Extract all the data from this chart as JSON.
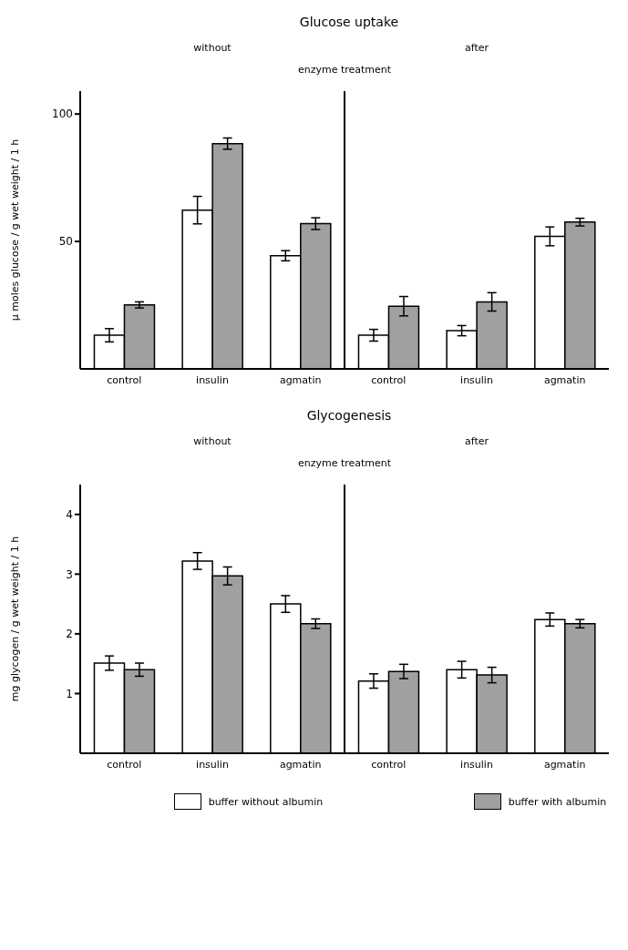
{
  "chart_data": [
    {
      "type": "bar",
      "title": "Glucose uptake",
      "ylabel": "µ moles glucose / g  wet  weight / 1 h",
      "annotations": [
        "without",
        "after",
        "enzyme treatment"
      ],
      "categories": [
        "control",
        "insulin",
        "agmatin",
        "control",
        "insulin",
        "agmatin"
      ],
      "series": [
        {
          "color": "#ffffff",
          "values": [
            13.2,
            62.3,
            44.4,
            13.2,
            15.0,
            52.0
          ],
          "errors": [
            2.6,
            5.4,
            2.0,
            2.3,
            2.0,
            3.7
          ]
        },
        {
          "color": "#a0a0a0",
          "values": [
            25.1,
            88.4,
            57.0,
            24.6,
            26.3,
            57.6
          ],
          "errors": [
            1.2,
            2.2,
            2.3,
            3.8,
            3.6,
            1.5
          ]
        }
      ],
      "ylim": [
        0,
        109
      ],
      "yticks": [
        50,
        100
      ],
      "grid": false,
      "legend": false
    },
    {
      "type": "bar",
      "title": "Glycogenesis",
      "ylabel": "mg glycogen / g  wet  weight / 1 h",
      "annotations": [
        "without",
        "after",
        "enzyme treatment"
      ],
      "categories": [
        "control",
        "insulin",
        "agmatin",
        "control",
        "insulin",
        "agmatin"
      ],
      "series": [
        {
          "name": "buffer without albumin",
          "color": "#ffffff",
          "values": [
            1.51,
            3.22,
            2.5,
            1.21,
            1.4,
            2.24
          ],
          "errors": [
            0.12,
            0.14,
            0.14,
            0.12,
            0.14,
            0.11
          ]
        },
        {
          "name": "buffer with albumin",
          "color": "#a0a0a0",
          "values": [
            1.4,
            2.97,
            2.17,
            1.37,
            1.31,
            2.17
          ],
          "errors": [
            0.11,
            0.15,
            0.08,
            0.12,
            0.13,
            0.07
          ]
        }
      ],
      "ylim": [
        0,
        4.5
      ],
      "yticks": [
        1,
        2,
        3,
        4
      ],
      "grid": false,
      "legend": "bottom"
    }
  ]
}
